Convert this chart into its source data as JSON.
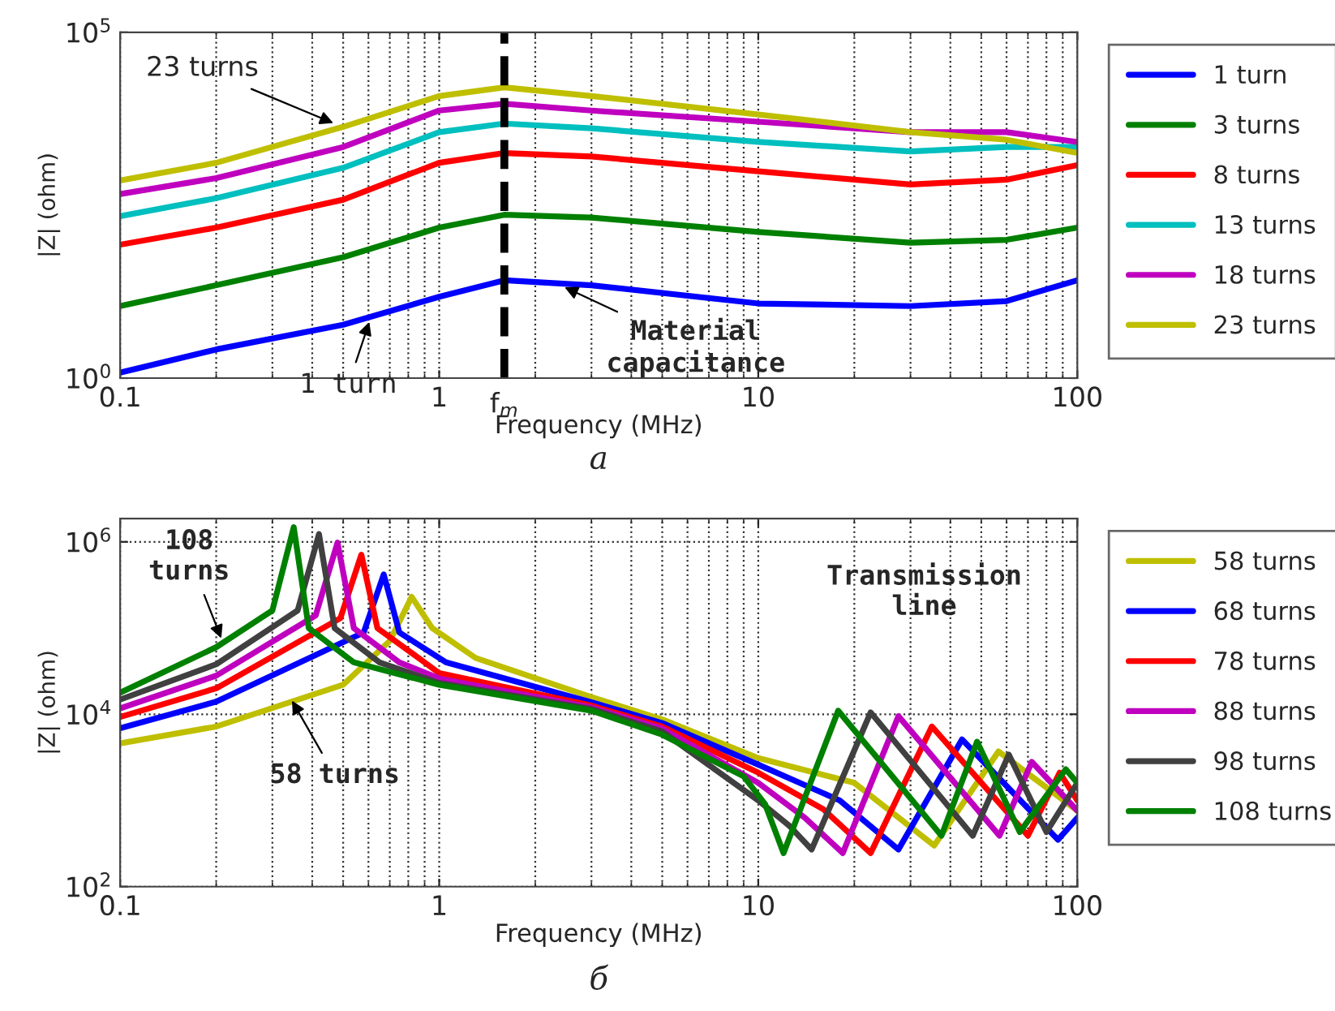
{
  "chart_data": [
    {
      "type": "line",
      "xlabel": "Frequency (MHz)",
      "ylabel": "|Z| (ohm)",
      "log": "xy",
      "grid": "x",
      "legend": "right",
      "line_style": "solid",
      "marker": "none",
      "xlim": [
        0.1,
        100
      ],
      "xticks": [
        0.1,
        1,
        10,
        100
      ],
      "ylim": [
        1,
        100000
      ],
      "yticks": [
        {
          "value": 1,
          "label": "10$^{0}$"
        },
        {
          "value": 100000,
          "label": "10$^{5}$"
        }
      ],
      "x": [
        0.1,
        0.2,
        0.5,
        1,
        1.6,
        3,
        10,
        30,
        60,
        100
      ],
      "series": [
        {
          "name": "1 turn",
          "color": "#0000ff",
          "values": [
            1.2,
            2.6,
            5.9,
            15,
            26,
            22,
            12,
            11,
            13,
            26
          ]
        },
        {
          "name": "3 turns",
          "color": "#008000",
          "values": [
            11,
            22,
            56,
            150,
            230,
            210,
            130,
            91,
            100,
            150
          ]
        },
        {
          "name": "8 turns",
          "color": "#ff0000",
          "values": [
            85,
            150,
            380,
            1300,
            1800,
            1600,
            980,
            630,
            740,
            1200
          ]
        },
        {
          "name": "13 turns",
          "color": "#00bfbf",
          "values": [
            220,
            400,
            1100,
            3600,
            4800,
            4100,
            2600,
            1900,
            2200,
            2200
          ]
        },
        {
          "name": "18 turns",
          "color": "#bf00bf",
          "values": [
            460,
            780,
            2200,
            7400,
            9300,
            7400,
            5100,
            3600,
            3600,
            2600
          ]
        },
        {
          "name": "23 turns",
          "color": "#bfbf00",
          "values": [
            720,
            1300,
            4300,
            12000,
            16000,
            12000,
            6500,
            3600,
            2800,
            1800
          ]
        }
      ],
      "ref_lines": [
        {
          "axis": "x",
          "value": 1.6,
          "label": "f$_{m}$",
          "color": "#000000",
          "line_style": "dashed"
        }
      ],
      "annotations": [
        {
          "text": "23 turns",
          "x": 0.48,
          "y": 4600
        },
        {
          "text": "1 turn",
          "x": 0.61,
          "y": 7.5
        },
        {
          "text": "Material\ncapacitance",
          "x": 2.4,
          "y": 22
        },
        "а"
      ]
    },
    {
      "type": "line",
      "xlabel": "Frequency (MHz)",
      "ylabel": "|Z| (ohm)",
      "log": "xy",
      "grid": true,
      "legend": "right",
      "line_style": "solid",
      "marker": "none",
      "xlim": [
        0.1,
        100
      ],
      "xticks": [
        0.1,
        1,
        10,
        100
      ],
      "ylim": [
        100,
        1860000
      ],
      "yticks": [
        {
          "value": 100,
          "label": "10$^{2}$"
        },
        {
          "value": 10000,
          "label": "10$^{4}$"
        },
        {
          "value": 1000000,
          "label": "10$^{6}$"
        }
      ],
      "series": [
        {
          "name": "58 turns",
          "color": "#bfbf00",
          "x": [
            0.1,
            0.2,
            0.5,
            0.7,
            0.82,
            0.95,
            1.3,
            3,
            5,
            10,
            20,
            35.6,
            56.6,
            100
          ],
          "values": [
            4600,
            7200,
            22000,
            71000,
            230000,
            100000,
            45000,
            15800,
            8700,
            3100,
            1600,
            300,
            3700,
            760
          ]
        },
        {
          "name": "68 turns",
          "color": "#0000ff",
          "x": [
            0.1,
            0.2,
            0.58,
            0.67,
            0.75,
            1.05,
            3,
            5,
            10,
            18,
            27.5,
            43.5,
            87,
            100
          ],
          "values": [
            6900,
            14000,
            89000,
            420000,
            89000,
            40000,
            13800,
            7900,
            2600,
            1000,
            270,
            5100,
            350,
            630
          ]
        },
        {
          "name": "78 turns",
          "color": "#ff0000",
          "x": [
            0.1,
            0.2,
            0.49,
            0.57,
            0.64,
            0.9,
            1,
            3,
            5,
            10,
            16,
            22.5,
            35,
            70,
            88,
            100
          ],
          "values": [
            9300,
            20000,
            130000,
            710000,
            100000,
            40000,
            30000,
            12600,
            7200,
            2100,
            790,
            245,
            7200,
            390,
            2100,
            1000
          ]
        },
        {
          "name": "88 turns",
          "color": "#bf00bf",
          "x": [
            0.1,
            0.2,
            0.41,
            0.48,
            0.54,
            0.75,
            1,
            3,
            5,
            10,
            14,
            18.4,
            27.5,
            57,
            72,
            100
          ],
          "values": [
            11700,
            28000,
            140000,
            980000,
            100000,
            40000,
            26000,
            12000,
            6800,
            1600,
            630,
            245,
            9500,
            390,
            2800,
            760
          ]
        },
        {
          "name": "98 turns",
          "color": "#404040",
          "x": [
            0.1,
            0.2,
            0.36,
            0.42,
            0.47,
            0.65,
            1,
            3,
            5,
            10,
            12.5,
            14.7,
            22.5,
            47,
            61,
            80,
            100
          ],
          "values": [
            14800,
            38000,
            160000,
            1230000,
            100000,
            40000,
            23000,
            11500,
            6300,
            1000,
            510,
            270,
            10500,
            390,
            3400,
            430,
            1600
          ]
        },
        {
          "name": "108 turns",
          "color": "#008000",
          "x": [
            0.1,
            0.2,
            0.3,
            0.35,
            0.39,
            0.54,
            1,
            3,
            5,
            9,
            10.5,
            12,
            17.8,
            37.5,
            48.5,
            66,
            92,
            100
          ],
          "values": [
            17800,
            60000,
            160000,
            1480000,
            100000,
            40000,
            22000,
            11000,
            5800,
            1900,
            910,
            245,
            11000,
            390,
            4800,
            430,
            2300,
            1600
          ]
        }
      ],
      "annotations": [
        {
          "text": "108\nturns",
          "x": 0.21,
          "y": 68000
        },
        {
          "text": "58 turns",
          "x": 0.34,
          "y": 16000
        },
        "Transmission\nline",
        "б"
      ]
    }
  ]
}
